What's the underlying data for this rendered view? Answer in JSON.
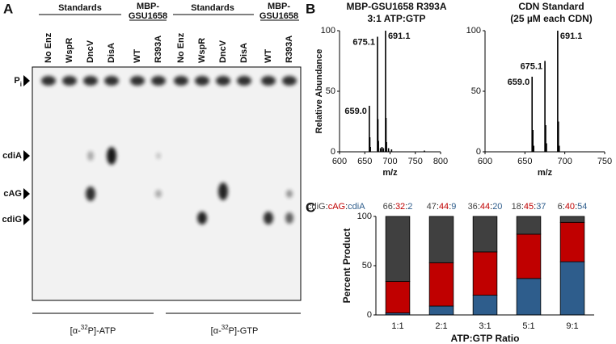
{
  "panel_a": {
    "label": "A",
    "groups": [
      {
        "lines": [
          "Standards"
        ]
      },
      {
        "lines": [
          "MBP-",
          "GSU1658"
        ]
      },
      {
        "lines": [
          "Standards"
        ]
      },
      {
        "lines": [
          "MBP-",
          "GSU1658"
        ]
      }
    ],
    "lanes": [
      "No Enz",
      "WspR",
      "DncV",
      "DisA",
      "WT",
      "R393A",
      "No Enz",
      "WspR",
      "DncV",
      "DisA",
      "WT",
      "R393A"
    ],
    "markers": [
      {
        "main": "P",
        "sub": "i"
      },
      {
        "main": "cdiA"
      },
      {
        "main": "cAG"
      },
      {
        "main": "cdiG"
      }
    ],
    "nucleotides": [
      {
        "prefix": "[α-",
        "sup": "32",
        "suffix": "P]-ATP"
      },
      {
        "prefix": "[α-",
        "sup": "32",
        "suffix": "P]-GTP"
      }
    ]
  },
  "panel_labels": [
    "B",
    "C"
  ],
  "chart_data": [
    {
      "type": "stem",
      "title": "MBP-GSU1658 R393A",
      "subtitle": "3:1 ATP:GTP",
      "y_label": "Relative Abundance",
      "x_label": "m/z",
      "x": [
        659.0,
        660,
        661,
        675.1,
        676,
        677,
        681,
        684,
        687,
        691.1,
        692,
        693,
        697,
        703,
        768
      ],
      "values": [
        38,
        12,
        4,
        95,
        27,
        9,
        3,
        4,
        3,
        100,
        28,
        8,
        3,
        2,
        1
      ],
      "color": "#000000",
      "annotations": [
        "675.1",
        "691.1",
        "659.0"
      ],
      "xlim": [
        600,
        800
      ],
      "xticks": [
        600,
        650,
        700,
        750,
        800
      ],
      "ylim": [
        0,
        100
      ],
      "yticks": [
        0,
        50,
        100
      ]
    },
    {
      "type": "stem",
      "title": "CDN Standard",
      "subtitle": "(25 µM each CDN)",
      "x_label": "m/z",
      "x": [
        659.0,
        660,
        661,
        675.1,
        676,
        677,
        691.1,
        692,
        693
      ],
      "values": [
        62,
        18,
        5,
        75,
        22,
        7,
        100,
        25,
        5
      ],
      "color": "#000000",
      "annotations": [
        "691.1",
        "675.1",
        "659.0"
      ],
      "xlim": [
        600,
        750
      ],
      "xticks": [
        600,
        650,
        700,
        750
      ],
      "ylim": [
        0,
        100
      ],
      "yticks": [
        0,
        50,
        100
      ]
    },
    {
      "type": "bar",
      "stacked": true,
      "y_label": "Percent Product",
      "x_label": "ATP:GTP Ratio",
      "separator": ":",
      "categories": [
        "1:1",
        "2:1",
        "3:1",
        "5:1",
        "9:1"
      ],
      "series": [
        {
          "name": "cdiA",
          "color": "#2e5d8c",
          "values": [
            2,
            9,
            20,
            37,
            54
          ]
        },
        {
          "name": "cAG",
          "color": "#c00000",
          "values": [
            32,
            44,
            44,
            45,
            40
          ]
        },
        {
          "name": "cdiG",
          "color": "#404040",
          "values": [
            66,
            47,
            36,
            18,
            6
          ]
        }
      ],
      "ylim": [
        0,
        100
      ],
      "yticks": [
        0,
        50,
        100
      ]
    }
  ]
}
